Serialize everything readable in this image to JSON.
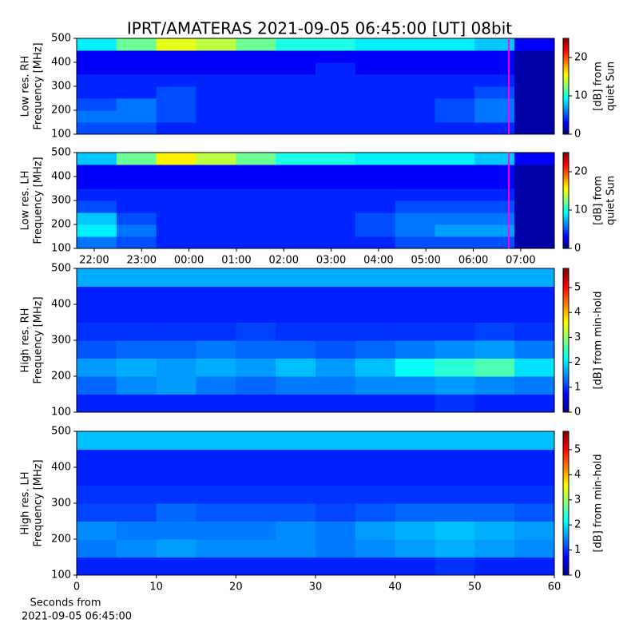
{
  "title": "IPRT/AMATERAS 2021-09-05 06:45:00 [UT]   08bit",
  "xlabel": [
    "Seconds from",
    "2021-09-05 06:45:00"
  ],
  "chart_data": [
    {
      "type": "heatmap",
      "ylabel": [
        "Low res. RH",
        "Frequency [MHz]"
      ],
      "colormap": "jet",
      "xlim": [
        21.63,
        31.71
      ],
      "ylim": [
        100,
        500
      ],
      "yticks": [
        100,
        200,
        300,
        400,
        500
      ],
      "clim": [
        0,
        25
      ],
      "cticks": [
        0,
        10,
        20
      ],
      "colorbar_label": [
        "[dB] from",
        "quiet Sun"
      ],
      "marker": {
        "x": 30.75,
        "color": "#ff00ff"
      },
      "z": [
        [
          5,
          5,
          4,
          4,
          4,
          4,
          4,
          4,
          4,
          4,
          4,
          1
        ],
        [
          6,
          6,
          5,
          4,
          4,
          4,
          4,
          4,
          4,
          5,
          6,
          1
        ],
        [
          5,
          6,
          5,
          4,
          4,
          4,
          4,
          4,
          4,
          5,
          6,
          1
        ],
        [
          4,
          4,
          5,
          4,
          4,
          4,
          4,
          4,
          4,
          4,
          5,
          1
        ],
        [
          4,
          4,
          4,
          4,
          4,
          4,
          4,
          4,
          4,
          4,
          4,
          1
        ],
        [
          3,
          3,
          3,
          3,
          3,
          3,
          4,
          3,
          3,
          3,
          3,
          1
        ],
        [
          3,
          3,
          3,
          3,
          3,
          3,
          3,
          3,
          3,
          3,
          3,
          1
        ],
        [
          9,
          12,
          15,
          14,
          12,
          10,
          10,
          9,
          9,
          9,
          8,
          3
        ]
      ]
    },
    {
      "type": "heatmap",
      "ylabel": [
        "Low res. LH",
        "Frequency [MHz]"
      ],
      "colormap": "jet",
      "xlim": [
        21.63,
        31.71
      ],
      "ylim": [
        100,
        500
      ],
      "yticks": [
        100,
        200,
        300,
        400,
        500
      ],
      "xticks": [
        {
          "value": 22,
          "label": "22:00"
        },
        {
          "value": 23,
          "label": "23:00"
        },
        {
          "value": 24,
          "label": "00:00"
        },
        {
          "value": 25,
          "label": "01:00"
        },
        {
          "value": 26,
          "label": "02:00"
        },
        {
          "value": 27,
          "label": "03:00"
        },
        {
          "value": 28,
          "label": "04:00"
        },
        {
          "value": 29,
          "label": "05:00"
        },
        {
          "value": 30,
          "label": "06:00"
        },
        {
          "value": 31,
          "label": "07:00"
        }
      ],
      "clim": [
        0,
        25
      ],
      "cticks": [
        0,
        10,
        20
      ],
      "colorbar_label": [
        "[dB] from",
        "quiet Sun"
      ],
      "marker": {
        "x": 30.75,
        "color": "#ff00ff"
      },
      "z": [
        [
          6,
          5,
          4,
          4,
          4,
          4,
          4,
          4,
          5,
          5,
          5,
          1
        ],
        [
          9,
          6,
          4,
          4,
          4,
          4,
          4,
          5,
          6,
          7,
          7,
          1
        ],
        [
          8,
          5,
          4,
          4,
          4,
          4,
          4,
          5,
          6,
          6,
          6,
          1
        ],
        [
          5,
          4,
          4,
          4,
          4,
          4,
          4,
          4,
          5,
          5,
          5,
          1
        ],
        [
          4,
          4,
          4,
          4,
          4,
          4,
          4,
          4,
          4,
          4,
          4,
          1
        ],
        [
          3,
          3,
          3,
          3,
          3,
          3,
          3,
          3,
          3,
          3,
          3,
          1
        ],
        [
          3,
          3,
          3,
          3,
          3,
          3,
          3,
          3,
          3,
          3,
          3,
          1
        ],
        [
          8,
          12,
          16,
          14,
          12,
          10,
          10,
          9,
          9,
          9,
          8,
          3
        ]
      ]
    },
    {
      "type": "heatmap",
      "ylabel": [
        "High res. RH",
        "Frequency [MHz]"
      ],
      "colormap": "jet",
      "xlim": [
        0,
        60
      ],
      "ylim": [
        100,
        500
      ],
      "yticks": [
        100,
        200,
        300,
        400,
        500
      ],
      "clim": [
        0,
        5.77
      ],
      "cticks": [
        0,
        1,
        2,
        3,
        4,
        5
      ],
      "colorbar_label": [
        "[dB] from min-hold"
      ],
      "z": [
        [
          0.9,
          0.9,
          0.9,
          0.9,
          0.9,
          0.9,
          0.9,
          0.9,
          0.9,
          1.0,
          0.9,
          0.9
        ],
        [
          1.3,
          1.5,
          1.6,
          1.4,
          1.3,
          1.4,
          1.4,
          1.5,
          1.5,
          1.6,
          1.5,
          1.4
        ],
        [
          1.6,
          1.7,
          1.6,
          1.7,
          1.6,
          1.8,
          1.6,
          1.8,
          2.2,
          2.4,
          2.6,
          2.0
        ],
        [
          1.2,
          1.3,
          1.3,
          1.4,
          1.3,
          1.3,
          1.2,
          1.3,
          1.4,
          1.5,
          1.6,
          1.4
        ],
        [
          1.0,
          1.0,
          1.0,
          1.0,
          1.1,
          1.0,
          1.0,
          1.0,
          1.0,
          1.0,
          1.1,
          1.0
        ],
        [
          0.9,
          0.9,
          0.9,
          0.9,
          0.9,
          0.9,
          0.9,
          0.9,
          0.9,
          0.9,
          0.9,
          0.9
        ],
        [
          0.9,
          0.9,
          0.9,
          0.9,
          0.9,
          0.9,
          0.9,
          0.9,
          0.9,
          0.9,
          0.9,
          0.9
        ],
        [
          1.7,
          1.7,
          1.7,
          1.7,
          1.7,
          1.7,
          1.7,
          1.7,
          1.7,
          1.7,
          1.7,
          1.7
        ]
      ]
    },
    {
      "type": "heatmap",
      "ylabel": [
        "High res. LH",
        "Frequency [MHz]"
      ],
      "colormap": "jet",
      "xlim": [
        0,
        60
      ],
      "ylim": [
        100,
        500
      ],
      "yticks": [
        100,
        200,
        300,
        400,
        500
      ],
      "xticks": [
        0,
        10,
        20,
        30,
        40,
        50,
        60
      ],
      "clim": [
        0,
        5.73
      ],
      "cticks": [
        0,
        1,
        2,
        3,
        4,
        5
      ],
      "colorbar_label": [
        "[dB] from min-hold"
      ],
      "z": [
        [
          0.9,
          0.9,
          0.9,
          0.9,
          0.9,
          0.9,
          0.9,
          0.9,
          0.9,
          1.0,
          0.9,
          0.9
        ],
        [
          1.4,
          1.5,
          1.6,
          1.5,
          1.5,
          1.5,
          1.4,
          1.5,
          1.6,
          1.7,
          1.6,
          1.5
        ],
        [
          1.5,
          1.4,
          1.4,
          1.4,
          1.4,
          1.5,
          1.4,
          1.6,
          1.7,
          1.8,
          1.7,
          1.6
        ],
        [
          1.1,
          1.1,
          1.3,
          1.2,
          1.2,
          1.2,
          1.1,
          1.2,
          1.3,
          1.3,
          1.3,
          1.2
        ],
        [
          1.0,
          1.0,
          1.0,
          1.0,
          1.0,
          1.0,
          1.0,
          1.0,
          1.0,
          1.0,
          1.0,
          1.0
        ],
        [
          0.9,
          0.9,
          0.9,
          0.9,
          0.9,
          0.9,
          0.9,
          0.9,
          0.9,
          0.9,
          0.9,
          0.9
        ],
        [
          0.9,
          0.9,
          0.9,
          0.9,
          0.9,
          0.9,
          0.9,
          0.9,
          0.9,
          0.9,
          0.9,
          0.9
        ],
        [
          1.8,
          1.8,
          1.8,
          1.8,
          1.8,
          1.8,
          1.8,
          1.8,
          1.8,
          1.8,
          1.8,
          1.8
        ]
      ]
    }
  ]
}
